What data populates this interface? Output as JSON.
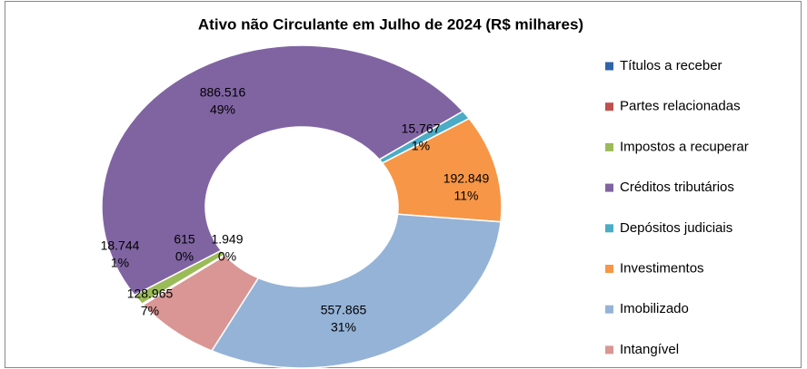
{
  "chart_data": {
    "type": "donut",
    "title": "Ativo não Circulante em Julho de 2024 (R$ milhares)",
    "categories": [
      "Títulos a receber",
      "Partes relacionadas",
      "Impostos a recuperar",
      "Créditos tributários",
      "Depósitos judiciais",
      "Investimentos",
      "Imobilizado",
      "Intangível"
    ],
    "values": [
      1949,
      615,
      18744,
      886516,
      15767,
      192849,
      557865,
      128965
    ],
    "value_labels": [
      "1.949",
      "615",
      "18.744",
      "886.516",
      "15.767",
      "192.849",
      "557.865",
      "128.965"
    ],
    "percent_labels": [
      "0%",
      "0%",
      "1%",
      "49%",
      "1%",
      "11%",
      "31%",
      "7%"
    ],
    "colors": [
      "#2f63a8",
      "#c0504d",
      "#9bbb59",
      "#8064a2",
      "#4bacc6",
      "#f79646",
      "#95b3d7",
      "#d99694"
    ],
    "legend": "right"
  }
}
